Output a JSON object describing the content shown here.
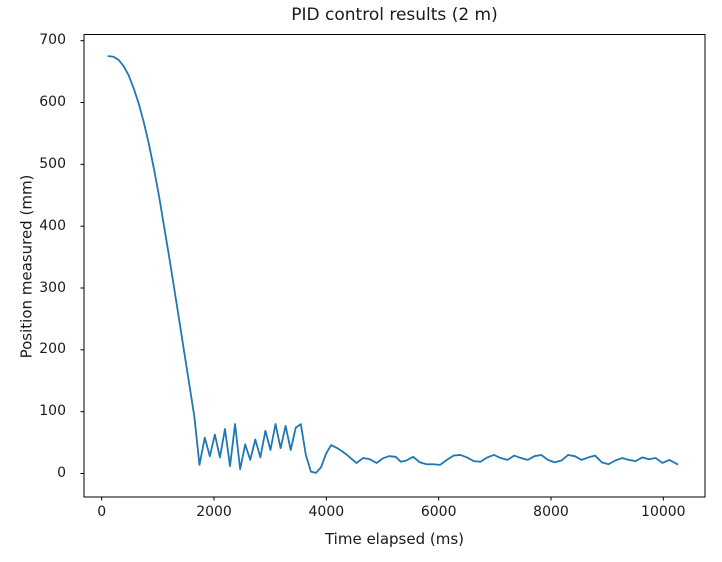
{
  "chart_data": {
    "type": "line",
    "title": "PID control results (2 m)",
    "xlabel": "Time elapsed (ms)",
    "ylabel": "Position measured (mm)",
    "xlim": [
      -315,
      10742
    ],
    "ylim": [
      -38,
      710
    ],
    "x_ticks": [
      0,
      2000,
      4000,
      6000,
      8000,
      10000
    ],
    "y_ticks": [
      0,
      100,
      200,
      300,
      400,
      500,
      600,
      700
    ],
    "grid": false,
    "legend": "none",
    "line_color": "#1f77b4",
    "spine_color": "#000000",
    "series": [
      {
        "name": "position-measured",
        "points": [
          [
            120,
            675
          ],
          [
            210,
            674
          ],
          [
            300,
            669
          ],
          [
            390,
            659
          ],
          [
            480,
            644
          ],
          [
            570,
            623
          ],
          [
            660,
            598
          ],
          [
            750,
            568
          ],
          [
            840,
            533
          ],
          [
            930,
            493
          ],
          [
            1020,
            449
          ],
          [
            1110,
            400
          ],
          [
            1200,
            351
          ],
          [
            1290,
            300
          ],
          [
            1380,
            248
          ],
          [
            1470,
            196
          ],
          [
            1560,
            144
          ],
          [
            1650,
            92
          ],
          [
            1741,
            14
          ],
          [
            1835,
            58
          ],
          [
            1925,
            28
          ],
          [
            2015,
            63
          ],
          [
            2105,
            26
          ],
          [
            2195,
            72
          ],
          [
            2285,
            12
          ],
          [
            2375,
            80
          ],
          [
            2465,
            7
          ],
          [
            2555,
            47
          ],
          [
            2645,
            22
          ],
          [
            2735,
            55
          ],
          [
            2825,
            26
          ],
          [
            2915,
            69
          ],
          [
            3005,
            38
          ],
          [
            3095,
            80
          ],
          [
            3185,
            41
          ],
          [
            3275,
            77
          ],
          [
            3365,
            38
          ],
          [
            3455,
            74
          ],
          [
            3545,
            80
          ],
          [
            3635,
            30
          ],
          [
            3725,
            3
          ],
          [
            3815,
            1
          ],
          [
            3905,
            10
          ],
          [
            3995,
            32
          ],
          [
            4085,
            46
          ],
          [
            4175,
            42
          ],
          [
            4265,
            37
          ],
          [
            4355,
            31
          ],
          [
            4445,
            24
          ],
          [
            4535,
            17
          ],
          [
            4655,
            25
          ],
          [
            4775,
            23
          ],
          [
            4895,
            17
          ],
          [
            5015,
            25
          ],
          [
            5115,
            28
          ],
          [
            5235,
            27
          ],
          [
            5325,
            19
          ],
          [
            5425,
            21
          ],
          [
            5545,
            27
          ],
          [
            5665,
            18
          ],
          [
            5785,
            15
          ],
          [
            5905,
            15
          ],
          [
            6025,
            14
          ],
          [
            6145,
            22
          ],
          [
            6265,
            29
          ],
          [
            6385,
            30
          ],
          [
            6505,
            26
          ],
          [
            6625,
            20
          ],
          [
            6745,
            19
          ],
          [
            6865,
            26
          ],
          [
            6985,
            30
          ],
          [
            7105,
            25
          ],
          [
            7225,
            22
          ],
          [
            7345,
            29
          ],
          [
            7465,
            25
          ],
          [
            7585,
            22
          ],
          [
            7705,
            28
          ],
          [
            7825,
            30
          ],
          [
            7945,
            22
          ],
          [
            8065,
            18
          ],
          [
            8185,
            21
          ],
          [
            8305,
            30
          ],
          [
            8425,
            28
          ],
          [
            8545,
            22
          ],
          [
            8665,
            26
          ],
          [
            8785,
            29
          ],
          [
            8905,
            18
          ],
          [
            9025,
            15
          ],
          [
            9145,
            21
          ],
          [
            9265,
            25
          ],
          [
            9385,
            22
          ],
          [
            9505,
            20
          ],
          [
            9625,
            26
          ],
          [
            9745,
            23
          ],
          [
            9865,
            25
          ],
          [
            9985,
            17
          ],
          [
            10105,
            22
          ],
          [
            10250,
            15
          ]
        ]
      }
    ]
  }
}
